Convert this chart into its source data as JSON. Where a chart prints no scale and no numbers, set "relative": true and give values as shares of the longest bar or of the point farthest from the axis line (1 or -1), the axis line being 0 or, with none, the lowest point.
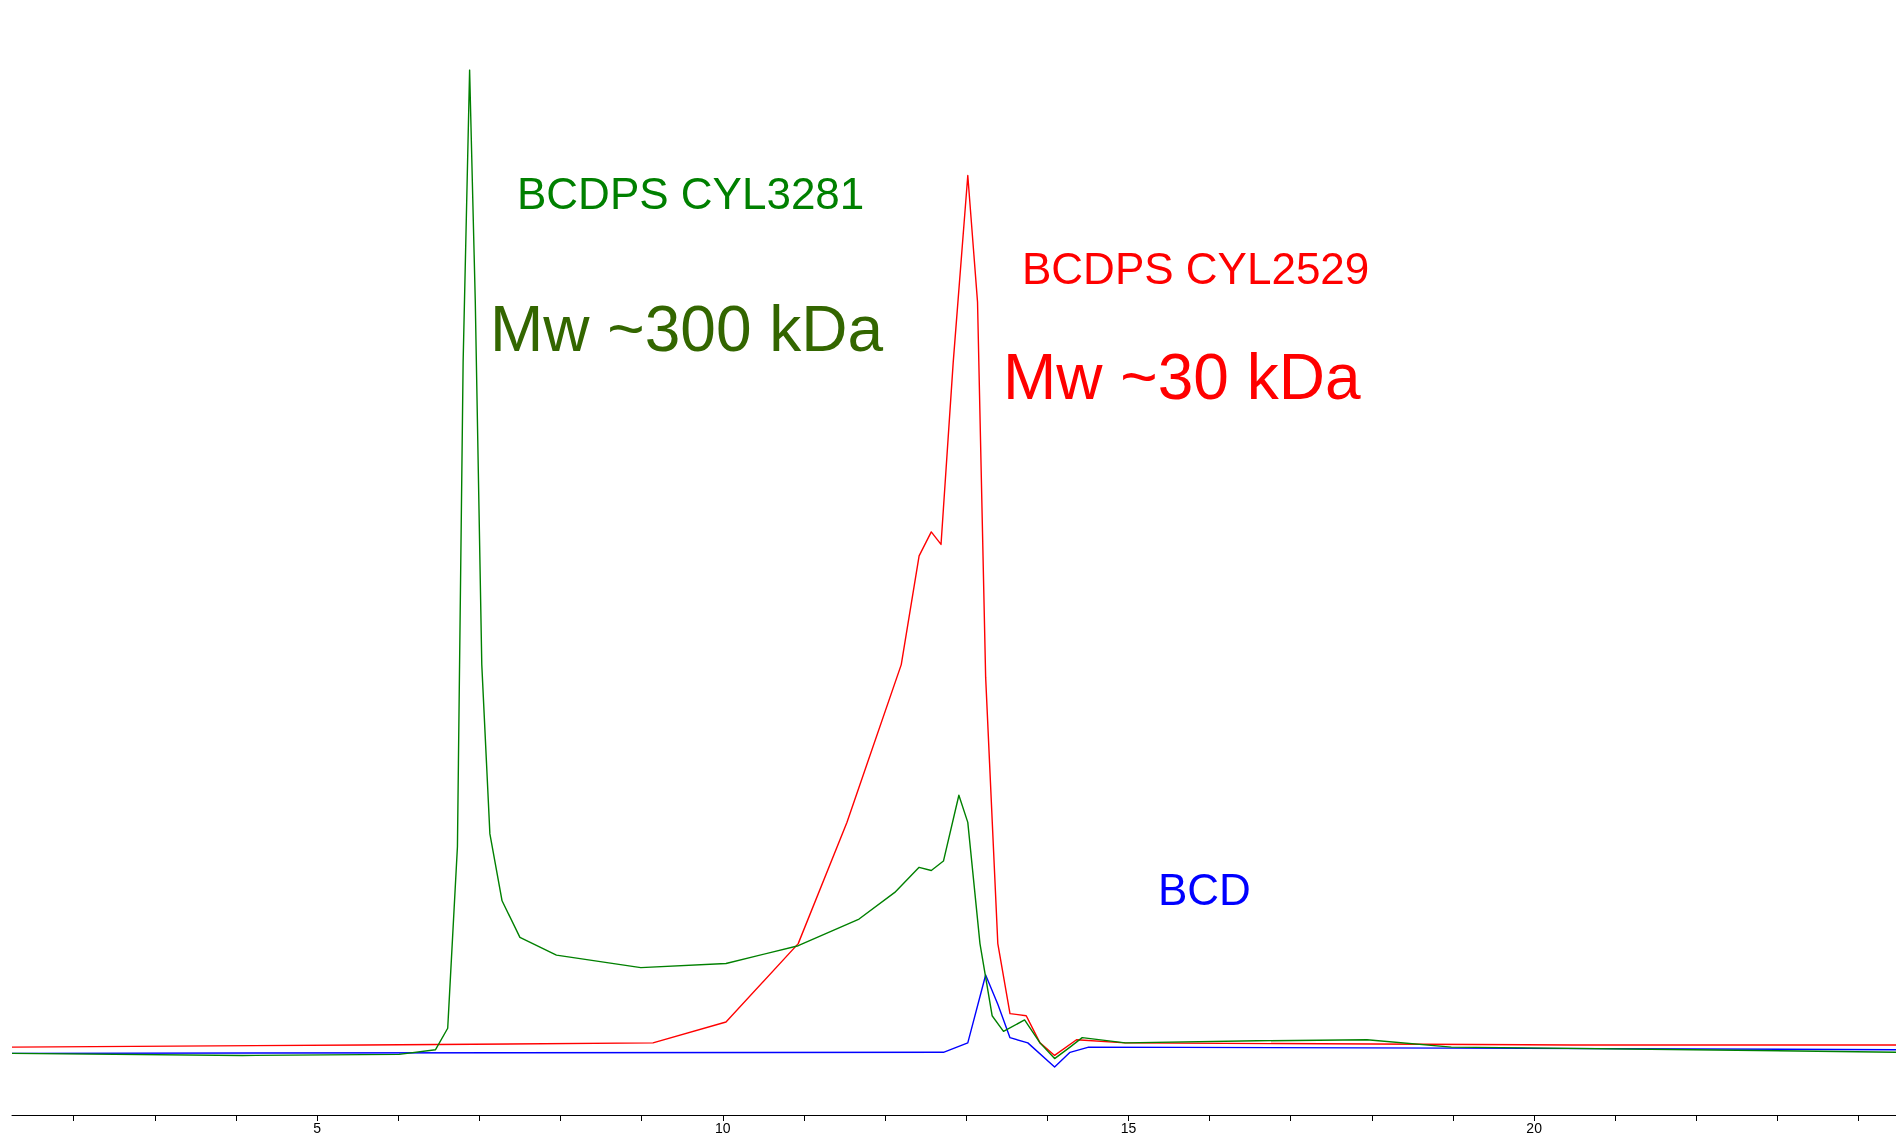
{
  "chart_data": {
    "type": "line",
    "relative": true,
    "tick_labels": "x",
    "xlim": [
      1.24,
      24.46
    ],
    "xticks": [
      {
        "value": 2,
        "label": null
      },
      {
        "value": 3,
        "label": null
      },
      {
        "value": 4,
        "label": null
      },
      5,
      {
        "value": 6,
        "label": null
      },
      {
        "value": 7,
        "label": null
      },
      {
        "value": 8,
        "label": null
      },
      {
        "value": 9,
        "label": null
      },
      10,
      {
        "value": 11,
        "label": null
      },
      {
        "value": 12,
        "label": null
      },
      {
        "value": 13,
        "label": null
      },
      {
        "value": 14,
        "label": null
      },
      15,
      {
        "value": 16,
        "label": null
      },
      {
        "value": 17,
        "label": null
      },
      {
        "value": 18,
        "label": null
      },
      {
        "value": 19,
        "label": null
      },
      20,
      {
        "value": 21,
        "label": null
      },
      {
        "value": 22,
        "label": null
      },
      {
        "value": 23,
        "label": null
      },
      {
        "value": 24,
        "label": null
      }
    ],
    "annotations": [
      "Mw ~300 kDa",
      "Mw ~30 kDa"
    ],
    "series": [
      {
        "name": "BCDPS CYL3281",
        "color": "#008000",
        "x": [
          1.24,
          4.08,
          6.01,
          6.46,
          6.61,
          6.73,
          6.8,
          6.88,
          6.95,
          7.03,
          7.13,
          7.28,
          7.5,
          7.95,
          8.99,
          10.04,
          10.93,
          11.68,
          12.12,
          12.42,
          12.57,
          12.72,
          12.91,
          13.02,
          13.17,
          13.32,
          13.46,
          13.72,
          13.91,
          14.09,
          14.28,
          14.43,
          14.96,
          16.59,
          17.94,
          18.98,
          21.96,
          24.46
        ],
        "values": [
          0.059,
          0.057,
          0.058,
          0.0625,
          0.083,
          0.257,
          0.72,
          1.0,
          0.778,
          0.431,
          0.269,
          0.205,
          0.17,
          0.153,
          0.141,
          0.145,
          0.162,
          0.1875,
          0.213,
          0.237,
          0.234,
          0.243,
          0.306,
          0.28,
          0.164,
          0.095,
          0.08,
          0.091,
          0.069,
          0.054,
          0.065,
          0.074,
          0.069,
          0.071,
          0.072,
          0.065,
          0.0625,
          0.06
        ]
      },
      {
        "name": "BCDPS CYL2529",
        "color": "#ff0000",
        "x": [
          1.24,
          5.57,
          9.14,
          10.04,
          10.93,
          11.53,
          12.2,
          12.42,
          12.57,
          12.69,
          12.84,
          13.02,
          13.14,
          13.24,
          13.39,
          13.54,
          13.74,
          13.91,
          14.09,
          14.36,
          14.96,
          20.47,
          24.46
        ],
        "values": [
          0.065,
          0.067,
          0.069,
          0.089,
          0.164,
          0.28,
          0.431,
          0.535,
          0.558,
          0.546,
          0.72,
          0.899,
          0.778,
          0.419,
          0.164,
          0.097,
          0.095,
          0.069,
          0.057,
          0.072,
          0.069,
          0.067,
          0.067
        ]
      },
      {
        "name": "BCD",
        "color": "#0000ff",
        "x": [
          1.24,
          12.72,
          13.02,
          13.24,
          13.39,
          13.54,
          13.76,
          14.09,
          14.28,
          14.51,
          18.98,
          24.46
        ],
        "values": [
          0.059,
          0.06,
          0.069,
          0.134,
          0.106,
          0.074,
          0.069,
          0.046,
          0.06,
          0.065,
          0.064,
          0.0625
        ]
      }
    ]
  }
}
